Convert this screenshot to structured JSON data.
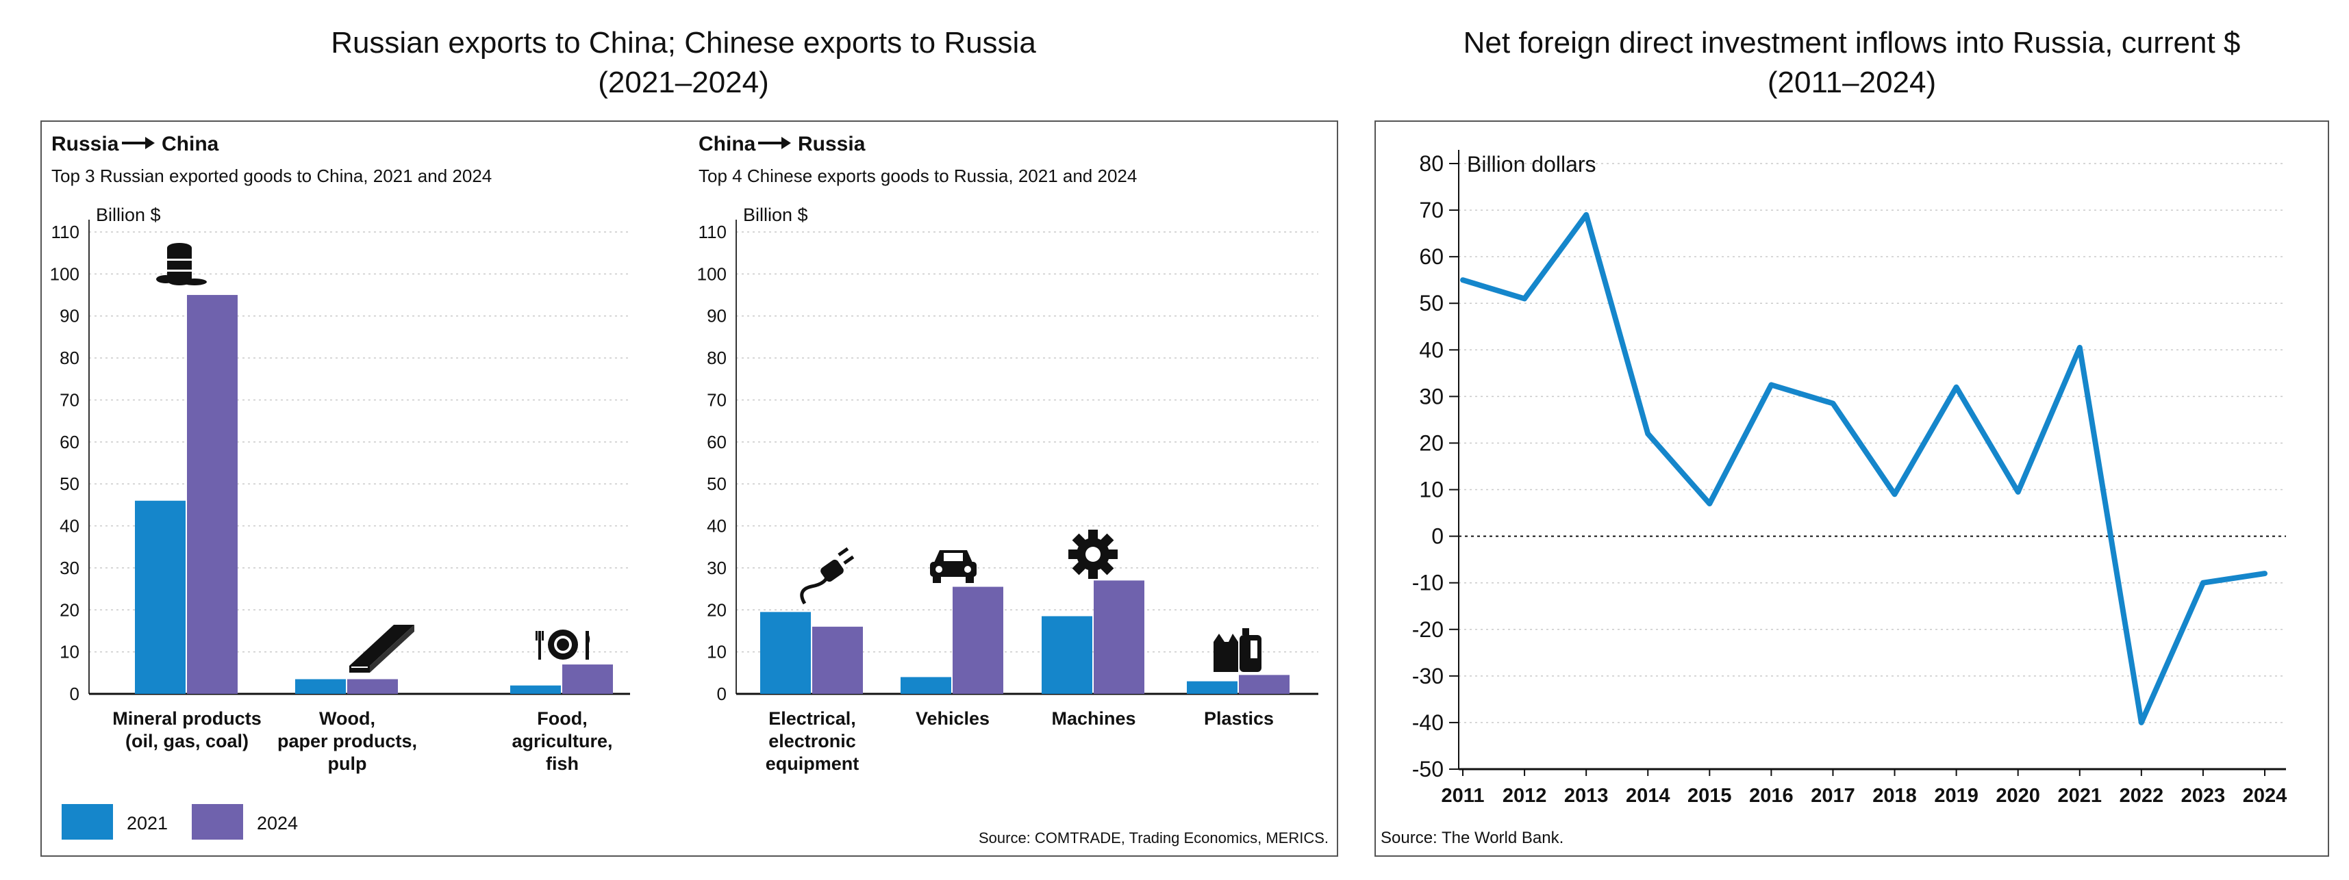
{
  "colors": {
    "c2021": "#1586cb",
    "c2024": "#6f62ad",
    "fdi_line": "#1586cb",
    "grid": "#c9c9c9",
    "frame": "#555555",
    "text": "#111111"
  },
  "left_figure": {
    "title_line1": "Russian exports to China; Chinese exports to Russia",
    "title_line2": "(2021–2024)",
    "source": "Source: COMTRADE, Trading Economics, MERICS."
  },
  "right_figure": {
    "title_line1": "Net foreign direct investment inflows into Russia, current $",
    "title_line2": "(2011–2024)",
    "source": "Source: The World Bank."
  },
  "chart_data": [
    {
      "type": "bar",
      "heading_from": "Russia",
      "heading_to": "China",
      "subtitle": "Top 3 Russian exported goods to China, 2021 and 2024",
      "ylabel": "Billion $",
      "ylim": [
        0,
        110
      ],
      "yticks": [
        0,
        10,
        20,
        30,
        40,
        50,
        60,
        70,
        80,
        90,
        100,
        110
      ],
      "grid": true,
      "categories": [
        [
          "Mineral products",
          "(oil, gas, coal)"
        ],
        [
          "Wood,",
          "paper products,",
          "pulp"
        ],
        [
          "Food,",
          "agriculture,",
          "fish"
        ]
      ],
      "icons": [
        "oil-barrel-icon",
        "wood-plank-icon",
        "plate-cutlery-icon"
      ],
      "series": [
        {
          "name": "2021",
          "values": [
            46,
            3.5,
            2
          ]
        },
        {
          "name": "2024",
          "values": [
            95,
            3.5,
            7
          ]
        }
      ],
      "legend": "bottom-left"
    },
    {
      "type": "bar",
      "heading_from": "China",
      "heading_to": "Russia",
      "subtitle": "Top 4 Chinese exports goods to Russia, 2021 and 2024",
      "ylabel": "Billion $",
      "ylim": [
        0,
        110
      ],
      "yticks": [
        0,
        10,
        20,
        30,
        40,
        50,
        60,
        70,
        80,
        90,
        100,
        110
      ],
      "grid": true,
      "categories": [
        [
          "Electrical,",
          "electronic",
          "equipment"
        ],
        [
          "Vehicles"
        ],
        [
          "Machines"
        ],
        [
          "Plastics"
        ]
      ],
      "icons": [
        "electric-plug-icon",
        "car-icon",
        "gear-icon",
        "plastic-bottles-icon"
      ],
      "series": [
        {
          "name": "2021",
          "values": [
            19.5,
            4,
            18.5,
            3
          ]
        },
        {
          "name": "2024",
          "values": [
            16,
            25.5,
            27,
            4.5
          ]
        }
      ]
    },
    {
      "type": "line",
      "ylabel": "Billion dollars",
      "ylim": [
        -50,
        80
      ],
      "yticks": [
        -50,
        -40,
        -30,
        -20,
        -10,
        0,
        10,
        20,
        30,
        40,
        50,
        60,
        70,
        80
      ],
      "grid": true,
      "x": [
        2011,
        2012,
        2013,
        2014,
        2015,
        2016,
        2017,
        2018,
        2019,
        2020,
        2021,
        2022,
        2023,
        2024
      ],
      "series": [
        {
          "values": [
            55,
            51,
            69,
            22,
            7,
            32.5,
            28.5,
            9,
            32,
            9.5,
            40.5,
            -40,
            -10,
            -8
          ]
        }
      ]
    }
  ]
}
